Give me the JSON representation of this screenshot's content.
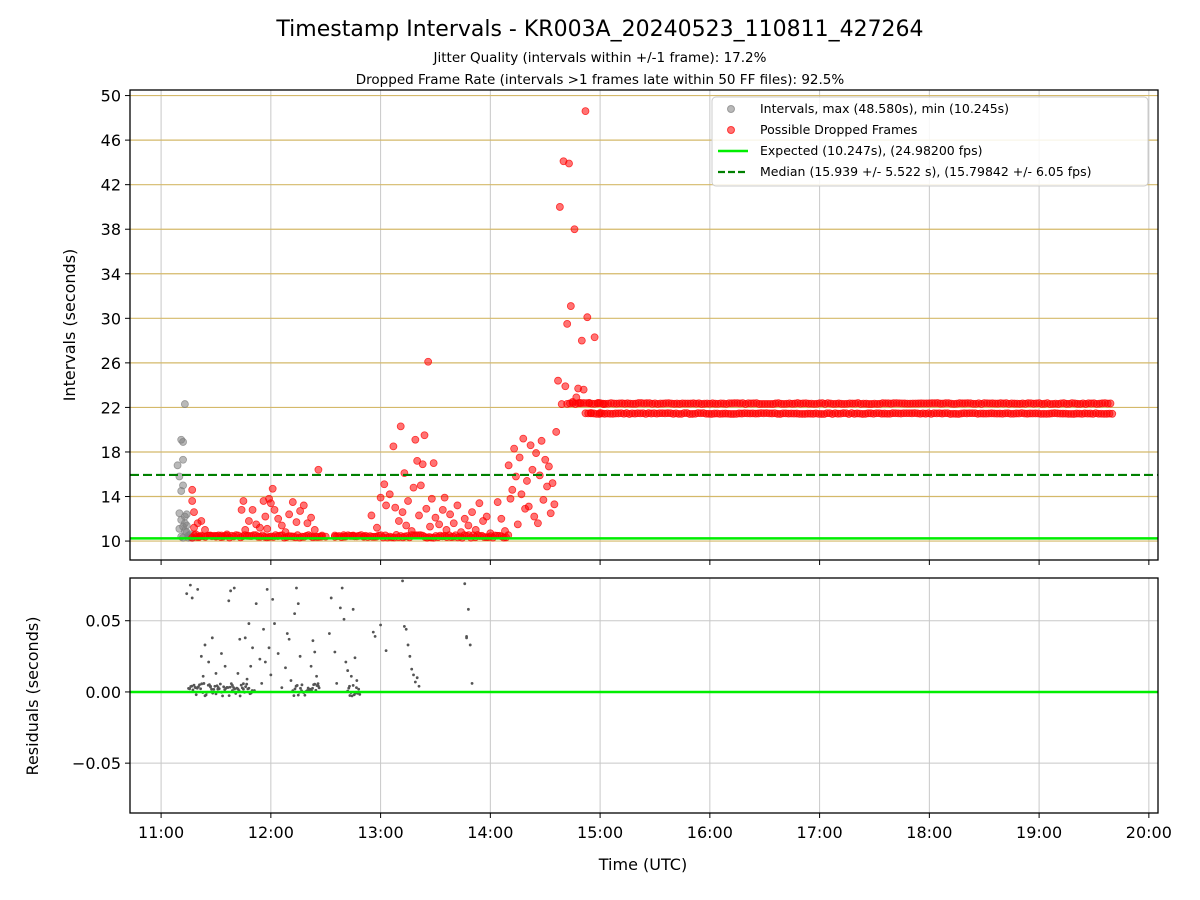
{
  "title": "Timestamp Intervals - KR003A_20240523_110811_427264",
  "subtitle_1": "Jitter Quality (intervals within +/-1 frame): 17.2%",
  "subtitle_2": "Dropped Frame Rate (intervals >1 frames late within 50 FF files): 92.5%",
  "colors": {
    "normal": "#808080",
    "dropped": "#ff0000",
    "expected": "#00ee00",
    "median": "#008000",
    "gridline_top": "#d4b96a",
    "gridline": "#c8c8c8",
    "residual_points": "#555555"
  },
  "chart_data": [
    {
      "type": "scatter",
      "panel": "intervals",
      "xlabel": "",
      "ylabel": "Intervals (seconds)",
      "ylim": [
        8.3,
        50.5
      ],
      "yticks": [
        10,
        14,
        18,
        22,
        26,
        30,
        34,
        38,
        42,
        46,
        50
      ],
      "ytick_labels": [
        "10",
        "14",
        "18",
        "22",
        "26",
        "30",
        "34",
        "38",
        "42",
        "46",
        "50"
      ],
      "xlim": [
        "10:43",
        "20:05"
      ],
      "legend_position": "top-right",
      "legend": [
        {
          "label": "Intervals, max (48.580s), min (10.245s)",
          "kind": "marker-gray"
        },
        {
          "label": "Possible Dropped Frames",
          "kind": "marker-red"
        },
        {
          "label": "Expected (10.247s), (24.98200 fps)",
          "kind": "line-green"
        },
        {
          "label": "Median (15.939 +/- 5.522 s), (15.79842 +/- 6.05 fps)",
          "kind": "dashed-green"
        }
      ],
      "expected_value": 10.247,
      "median_value": 15.939,
      "series_normal": {
        "name": "Intervals, max (48.580s), min (10.245s)",
        "points": [
          [
            "11:09",
            16.8
          ],
          [
            "11:10",
            15.8
          ],
          [
            "11:10",
            12.5
          ],
          [
            "11:10",
            11.1
          ],
          [
            "11:11",
            14.5
          ],
          [
            "11:11",
            19.1
          ],
          [
            "11:12",
            18.9
          ],
          [
            "11:12",
            17.3
          ],
          [
            "11:12",
            15.0
          ],
          [
            "11:13",
            22.3
          ],
          [
            "11:13",
            12.2
          ],
          [
            "11:13",
            11.6
          ],
          [
            "11:14",
            10.8
          ],
          [
            "11:14",
            11.4
          ],
          [
            "11:15",
            10.5
          ],
          [
            "11:11",
            11.9
          ],
          [
            "11:12",
            11.3
          ],
          [
            "11:13",
            10.9
          ],
          [
            "11:14",
            12.4
          ],
          [
            "11:16",
            10.6
          ],
          [
            "11:11",
            10.4
          ],
          [
            "11:12",
            10.3
          ],
          [
            "11:15",
            10.3
          ],
          [
            "11:16",
            10.35
          ],
          [
            "11:17",
            10.3
          ]
        ]
      },
      "series_dropped": {
        "name": "Possible Dropped Frames",
        "points": [
          [
            "11:17",
            14.6
          ],
          [
            "11:17",
            13.6
          ],
          [
            "11:18",
            12.6
          ],
          [
            "11:18",
            11.2
          ],
          [
            "11:19",
            10.6
          ],
          [
            "11:20",
            11.6
          ],
          [
            "11:21",
            10.4
          ],
          [
            "11:22",
            11.8
          ],
          [
            "11:24",
            11.0
          ],
          [
            "11:27",
            10.5
          ],
          [
            "11:30",
            10.4
          ],
          [
            "11:33",
            10.5
          ],
          [
            "11:36",
            10.6
          ],
          [
            "11:44",
            12.8
          ],
          [
            "11:45",
            13.6
          ],
          [
            "11:46",
            11.0
          ],
          [
            "11:48",
            11.8
          ],
          [
            "11:50",
            12.8
          ],
          [
            "11:52",
            11.5
          ],
          [
            "11:54",
            11.2
          ],
          [
            "11:56",
            13.6
          ],
          [
            "11:57",
            12.2
          ],
          [
            "11:58",
            11.1
          ],
          [
            "11:59",
            13.8
          ],
          [
            "12:00",
            13.4
          ],
          [
            "12:01",
            14.7
          ],
          [
            "12:02",
            12.8
          ],
          [
            "12:04",
            12.0
          ],
          [
            "12:06",
            11.4
          ],
          [
            "12:08",
            10.8
          ],
          [
            "12:10",
            12.4
          ],
          [
            "12:12",
            13.5
          ],
          [
            "12:14",
            11.7
          ],
          [
            "12:16",
            12.7
          ],
          [
            "12:18",
            13.2
          ],
          [
            "12:20",
            11.6
          ],
          [
            "12:22",
            12.1
          ],
          [
            "12:24",
            11.0
          ],
          [
            "12:26",
            16.4
          ],
          [
            "12:28",
            10.5
          ],
          [
            "12:30",
            10.4
          ],
          [
            "12:35",
            10.5
          ],
          [
            "12:40",
            10.4
          ],
          [
            "12:45",
            10.5
          ],
          [
            "12:51",
            10.4
          ],
          [
            "12:55",
            12.3
          ],
          [
            "12:58",
            11.2
          ],
          [
            "13:00",
            13.9
          ],
          [
            "13:02",
            15.1
          ],
          [
            "13:03",
            13.2
          ],
          [
            "13:05",
            14.2
          ],
          [
            "13:07",
            18.5
          ],
          [
            "13:08",
            13.0
          ],
          [
            "13:10",
            11.8
          ],
          [
            "13:11",
            20.3
          ],
          [
            "13:12",
            12.6
          ],
          [
            "13:13",
            16.1
          ],
          [
            "13:14",
            11.4
          ],
          [
            "13:15",
            13.6
          ],
          [
            "13:17",
            10.9
          ],
          [
            "13:18",
            14.8
          ],
          [
            "13:19",
            19.1
          ],
          [
            "13:20",
            17.2
          ],
          [
            "13:21",
            12.3
          ],
          [
            "13:22",
            15.0
          ],
          [
            "13:23",
            16.9
          ],
          [
            "13:24",
            19.5
          ],
          [
            "13:25",
            12.9
          ],
          [
            "13:26",
            26.1
          ],
          [
            "13:27",
            11.3
          ],
          [
            "13:28",
            13.8
          ],
          [
            "13:29",
            17.0
          ],
          [
            "13:30",
            12.1
          ],
          [
            "13:32",
            11.5
          ],
          [
            "13:34",
            12.8
          ],
          [
            "13:35",
            13.9
          ],
          [
            "13:36",
            11.0
          ],
          [
            "13:38",
            12.4
          ],
          [
            "13:40",
            11.6
          ],
          [
            "13:42",
            13.2
          ],
          [
            "13:44",
            10.8
          ],
          [
            "13:46",
            12.0
          ],
          [
            "13:48",
            11.4
          ],
          [
            "13:50",
            12.6
          ],
          [
            "13:52",
            11.0
          ],
          [
            "13:54",
            13.4
          ],
          [
            "13:56",
            11.8
          ],
          [
            "13:58",
            12.2
          ],
          [
            "14:00",
            10.7
          ],
          [
            "14:04",
            13.5
          ],
          [
            "14:06",
            12.0
          ],
          [
            "14:08",
            10.9
          ],
          [
            "14:10",
            16.8
          ],
          [
            "14:11",
            13.8
          ],
          [
            "14:12",
            14.6
          ],
          [
            "14:13",
            18.3
          ],
          [
            "14:14",
            15.8
          ],
          [
            "14:15",
            11.5
          ],
          [
            "14:16",
            17.5
          ],
          [
            "14:17",
            14.2
          ],
          [
            "14:18",
            19.2
          ],
          [
            "14:19",
            12.9
          ],
          [
            "14:20",
            15.4
          ],
          [
            "14:21",
            13.1
          ],
          [
            "14:22",
            18.6
          ],
          [
            "14:23",
            16.4
          ],
          [
            "14:24",
            12.2
          ],
          [
            "14:25",
            17.9
          ],
          [
            "14:26",
            11.6
          ],
          [
            "14:27",
            15.9
          ],
          [
            "14:28",
            19.0
          ],
          [
            "14:29",
            13.7
          ],
          [
            "14:30",
            17.3
          ],
          [
            "14:31",
            14.9
          ],
          [
            "14:32",
            16.7
          ],
          [
            "14:33",
            12.5
          ],
          [
            "14:34",
            15.2
          ],
          [
            "14:35",
            13.3
          ],
          [
            "14:36",
            19.8
          ],
          [
            "14:37",
            24.4
          ],
          [
            "14:38",
            40.0
          ],
          [
            "14:39",
            22.3
          ],
          [
            "14:40",
            44.1
          ],
          [
            "14:41",
            23.9
          ],
          [
            "14:42",
            29.5
          ],
          [
            "14:43",
            43.9
          ],
          [
            "14:44",
            31.1
          ],
          [
            "14:45",
            22.5
          ],
          [
            "14:46",
            38.0
          ],
          [
            "14:47",
            22.9
          ],
          [
            "14:48",
            23.7
          ],
          [
            "14:49",
            22.4
          ],
          [
            "14:50",
            28.0
          ],
          [
            "14:51",
            23.6
          ],
          [
            "14:52",
            48.6
          ],
          [
            "14:53",
            30.1
          ],
          [
            "14:54",
            22.4
          ],
          [
            "14:55",
            21.5
          ],
          [
            "14:57",
            28.3
          ],
          [
            "14:59",
            22.4
          ],
          [
            "15:00",
            21.5
          ],
          [
            "15:02",
            22.3
          ]
        ],
        "band_upper": {
          "from": "14:42",
          "to": "19:40",
          "value": 22.35
        },
        "band_lower": {
          "from": "14:52",
          "to": "19:40",
          "value": 21.45
        },
        "low_cluster_value": 10.3
      }
    },
    {
      "type": "scatter",
      "panel": "residuals",
      "xlabel": "Time (UTC)",
      "ylabel": "Residuals (seconds)",
      "ylim": [
        -0.085,
        0.08
      ],
      "yticks": [
        -0.05,
        0.0,
        0.05
      ],
      "ytick_labels": [
        "−0.05",
        "0.00",
        "0.05"
      ],
      "xticks": [
        "11:00",
        "12:00",
        "13:00",
        "14:00",
        "15:00",
        "16:00",
        "17:00",
        "18:00",
        "19:00",
        "20:00"
      ],
      "xtick_labels": [
        "11:00",
        "12:00",
        "13:00",
        "14:00",
        "15:00",
        "16:00",
        "17:00",
        "18:00",
        "19:00",
        "20:00"
      ],
      "xlim": [
        "10:43",
        "20:05"
      ],
      "reference_line": 0.0,
      "points": [
        [
          "11:14",
          0.069
        ],
        [
          "11:16",
          0.075
        ],
        [
          "11:17",
          0.066
        ],
        [
          "11:19",
          0.003
        ],
        [
          "11:20",
          0.072
        ],
        [
          "11:22",
          0.025
        ],
        [
          "11:23",
          0.011
        ],
        [
          "11:24",
          0.033
        ],
        [
          "11:26",
          0.021
        ],
        [
          "11:27",
          0.004
        ],
        [
          "11:28",
          0.038
        ],
        [
          "11:30",
          0.013
        ],
        [
          "11:31",
          0.002
        ],
        [
          "11:33",
          0.027
        ],
        [
          "11:35",
          0.018
        ],
        [
          "11:37",
          0.064
        ],
        [
          "11:38",
          0.071
        ],
        [
          "11:39",
          0.001
        ],
        [
          "11:40",
          0.073
        ],
        [
          "11:42",
          0.013
        ],
        [
          "11:43",
          0.037
        ],
        [
          "11:45",
          0.002
        ],
        [
          "11:46",
          0.038
        ],
        [
          "11:47",
          0.009
        ],
        [
          "11:48",
          0.048
        ],
        [
          "11:49",
          0.018
        ],
        [
          "11:50",
          0.031
        ],
        [
          "11:51",
          0.001
        ],
        [
          "11:52",
          0.062
        ],
        [
          "11:54",
          0.023
        ],
        [
          "11:55",
          0.006
        ],
        [
          "11:56",
          0.044
        ],
        [
          "11:57",
          0.021
        ],
        [
          "11:58",
          0.072
        ],
        [
          "11:59",
          0.031
        ],
        [
          "12:00",
          0.012
        ],
        [
          "12:01",
          0.065
        ],
        [
          "12:02",
          0.048
        ],
        [
          "12:04",
          0.027
        ],
        [
          "12:06",
          0.003
        ],
        [
          "12:08",
          0.017
        ],
        [
          "12:09",
          0.041
        ],
        [
          "12:10",
          0.037
        ],
        [
          "12:11",
          0.008
        ],
        [
          "12:13",
          0.055
        ],
        [
          "12:14",
          0.073
        ],
        [
          "12:15",
          0.062
        ],
        [
          "12:16",
          0.025
        ],
        [
          "12:17",
          0.005
        ],
        [
          "12:22",
          0.018
        ],
        [
          "12:23",
          0.036
        ],
        [
          "12:24",
          0.028
        ],
        [
          "12:25",
          0.011
        ],
        [
          "12:26",
          0.004
        ],
        [
          "12:32",
          0.041
        ],
        [
          "12:33",
          0.066
        ],
        [
          "12:35",
          0.028
        ],
        [
          "12:36",
          0.006
        ],
        [
          "12:38",
          0.059
        ],
        [
          "12:39",
          0.073
        ],
        [
          "12:40",
          0.051
        ],
        [
          "12:41",
          0.021
        ],
        [
          "12:42",
          0.015
        ],
        [
          "12:43",
          0.004
        ],
        [
          "12:44",
          0.011
        ],
        [
          "12:45",
          0.058
        ],
        [
          "12:46",
          0.024
        ],
        [
          "12:47",
          0.008
        ],
        [
          "12:48",
          0.002
        ],
        [
          "12:56",
          0.042
        ],
        [
          "12:57",
          0.039
        ],
        [
          "13:00",
          0.047
        ],
        [
          "13:03",
          0.029
        ],
        [
          "13:12",
          0.078
        ],
        [
          "13:13",
          0.046
        ],
        [
          "13:14",
          0.044
        ],
        [
          "13:15",
          0.033
        ],
        [
          "13:16",
          0.025
        ],
        [
          "13:17",
          0.016
        ],
        [
          "13:18",
          0.012
        ],
        [
          "13:19",
          0.007
        ],
        [
          "13:20",
          0.01
        ],
        [
          "13:21",
          0.004
        ],
        [
          "13:46",
          0.076
        ],
        [
          "13:47",
          0.039
        ],
        [
          "13:48",
          0.058
        ],
        [
          "13:49",
          0.033
        ],
        [
          "13:50",
          0.006
        ],
        [
          "13:47",
          0.038
        ]
      ],
      "near_zero_clusters": [
        {
          "from": "11:15",
          "to": "11:50"
        },
        {
          "from": "12:12",
          "to": "12:27"
        },
        {
          "from": "12:42",
          "to": "12:49"
        }
      ]
    }
  ]
}
